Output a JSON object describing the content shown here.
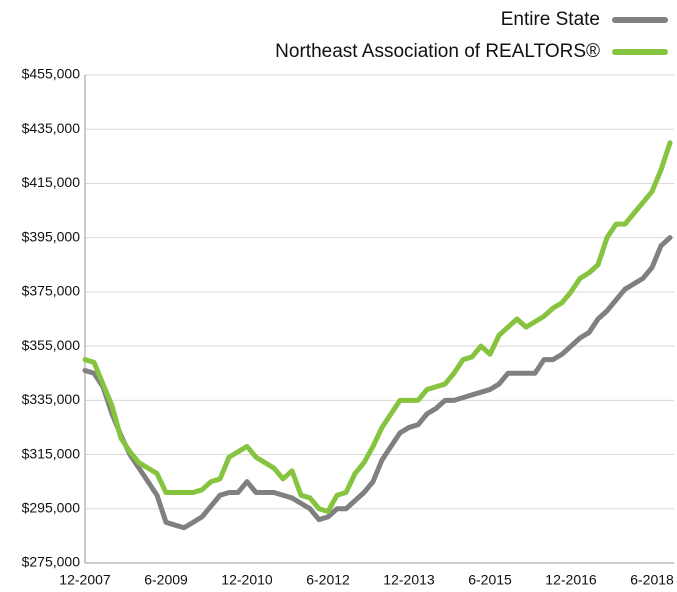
{
  "chart_data": {
    "type": "line",
    "categories": [
      "12-2007",
      null,
      null,
      null,
      null,
      null,
      null,
      null,
      null,
      "6-2009",
      null,
      null,
      null,
      null,
      null,
      null,
      null,
      null,
      "12-2010",
      null,
      null,
      null,
      null,
      null,
      null,
      null,
      null,
      "6-2012",
      null,
      null,
      null,
      null,
      null,
      null,
      null,
      null,
      "12-2013",
      null,
      null,
      null,
      null,
      null,
      null,
      null,
      null,
      "6-2015",
      null,
      null,
      null,
      null,
      null,
      null,
      null,
      null,
      "12-2016",
      null,
      null,
      null,
      null,
      null,
      null,
      null,
      null,
      "6-2018",
      null,
      null
    ],
    "series": [
      {
        "name": "Entire State",
        "color": "#808080",
        "values": [
          346000,
          345000,
          340000,
          330000,
          322000,
          315000,
          310000,
          305000,
          300000,
          290000,
          289000,
          288000,
          290000,
          292000,
          296000,
          300000,
          301000,
          301000,
          305000,
          301000,
          301000,
          301000,
          300000,
          299000,
          297000,
          295000,
          291000,
          292000,
          295000,
          295000,
          298000,
          301000,
          305000,
          313000,
          318000,
          323000,
          325000,
          326000,
          330000,
          332000,
          335000,
          335000,
          336000,
          337000,
          338000,
          339000,
          341000,
          345000,
          345000,
          345000,
          345000,
          350000,
          350000,
          352000,
          355000,
          358000,
          360000,
          365000,
          368000,
          372000,
          376000,
          378000,
          380000,
          384000,
          392000,
          395000
        ]
      },
      {
        "name": "Northeast Association of REALTORS®",
        "color": "#86c440",
        "values": [
          350000,
          349000,
          341000,
          333000,
          321000,
          316000,
          312000,
          310000,
          308000,
          301000,
          301000,
          301000,
          301000,
          302000,
          305000,
          306000,
          314000,
          316000,
          318000,
          314000,
          312000,
          310000,
          306000,
          309000,
          300000,
          299000,
          295000,
          294000,
          300000,
          301000,
          308000,
          312000,
          318000,
          325000,
          330000,
          335000,
          335000,
          335000,
          339000,
          340000,
          341000,
          345000,
          350000,
          351000,
          355000,
          352000,
          359000,
          362000,
          365000,
          362000,
          364000,
          366000,
          369000,
          371000,
          375000,
          380000,
          382000,
          385000,
          395000,
          400000,
          400000,
          404000,
          408000,
          412000,
          420000,
          430000
        ]
      }
    ],
    "ylim": [
      275000,
      455000
    ],
    "yticks": [
      {
        "value": 275000,
        "label": "$275,000"
      },
      {
        "value": 295000,
        "label": "$295,000"
      },
      {
        "value": 315000,
        "label": "$315,000"
      },
      {
        "value": 335000,
        "label": "$335,000"
      },
      {
        "value": 355000,
        "label": "$355,000"
      },
      {
        "value": 375000,
        "label": "$375,000"
      },
      {
        "value": 395000,
        "label": "$395,000"
      },
      {
        "value": 415000,
        "label": "$415,000"
      },
      {
        "value": 435000,
        "label": "$435,000"
      },
      {
        "value": 455000,
        "label": "$455,000"
      }
    ],
    "grid": true,
    "legend": "top-right"
  }
}
